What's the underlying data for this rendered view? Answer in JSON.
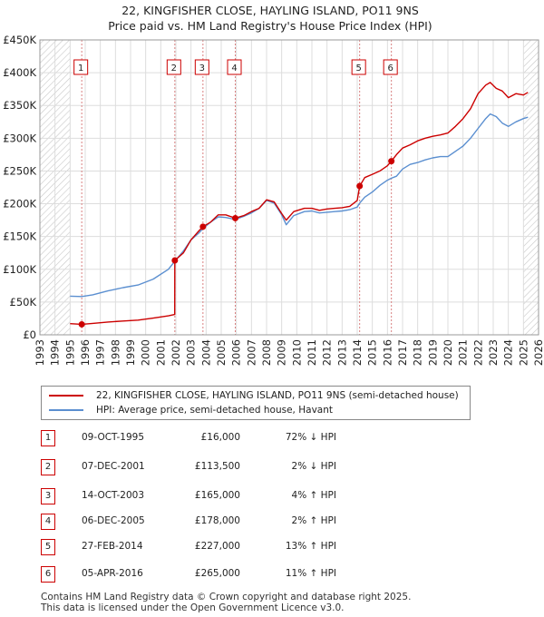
{
  "chart_data": {
    "type": "line",
    "title": "22, KINGFISHER CLOSE, HAYLING ISLAND, PO11 9NS",
    "subtitle": "Price paid vs. HM Land Registry's House Price Index (HPI)",
    "xlabel": "",
    "ylabel": "",
    "xlim": [
      1993,
      2026
    ],
    "ylim": [
      0,
      450000
    ],
    "x_ticks": [
      "1993",
      "1994",
      "1995",
      "1996",
      "1997",
      "1998",
      "1999",
      "2000",
      "2001",
      "2002",
      "2003",
      "2004",
      "2005",
      "2006",
      "2007",
      "2008",
      "2009",
      "2010",
      "2011",
      "2012",
      "2013",
      "2014",
      "2015",
      "2016",
      "2017",
      "2018",
      "2019",
      "2020",
      "2021",
      "2022",
      "2023",
      "2024",
      "2025",
      "2026"
    ],
    "y_ticks": [
      {
        "value": 0,
        "label": "£0"
      },
      {
        "value": 50000,
        "label": "£50K"
      },
      {
        "value": 100000,
        "label": "£100K"
      },
      {
        "value": 150000,
        "label": "£150K"
      },
      {
        "value": 200000,
        "label": "£200K"
      },
      {
        "value": 250000,
        "label": "£250K"
      },
      {
        "value": 300000,
        "label": "£300K"
      },
      {
        "value": 350000,
        "label": "£350K"
      },
      {
        "value": 400000,
        "label": "£400K"
      },
      {
        "value": 450000,
        "label": "£450K"
      }
    ],
    "grid": true,
    "hatched_regions": [
      [
        1993,
        1995.0
      ],
      [
        2025.0,
        2026
      ]
    ],
    "series": [
      {
        "name": "22, KINGFISHER CLOSE, HAYLING ISLAND, PO11 9NS (semi-detached house)",
        "color": "#cc0000",
        "x": [
          1995.0,
          1995.77,
          1996.5,
          1997.5,
          1998.5,
          1999.5,
          2000.5,
          2001.5,
          2001.92,
          2001.93,
          2002.5,
          2003.0,
          2003.5,
          2003.79,
          2004.3,
          2004.8,
          2005.3,
          2005.93,
          2006.5,
          2007.0,
          2007.5,
          2008.0,
          2008.5,
          2009.0,
          2009.3,
          2009.8,
          2010.5,
          2011.0,
          2011.5,
          2012.0,
          2012.5,
          2013.0,
          2013.5,
          2014.0,
          2014.16,
          2014.5,
          2015.0,
          2015.5,
          2016.0,
          2016.26,
          2016.6,
          2017.0,
          2017.5,
          2018.0,
          2018.5,
          2019.0,
          2019.5,
          2020.0,
          2020.5,
          2021.0,
          2021.5,
          2022.0,
          2022.5,
          2022.8,
          2023.2,
          2023.6,
          2024.0,
          2024.5,
          2025.0,
          2025.3
        ],
        "values": [
          17000,
          16000,
          17500,
          19500,
          21000,
          22500,
          25500,
          29000,
          31000,
          113500,
          125000,
          145000,
          158000,
          165000,
          172000,
          183000,
          183000,
          178000,
          182000,
          188000,
          193000,
          206000,
          203000,
          185000,
          175000,
          188000,
          193000,
          193000,
          190000,
          192000,
          193000,
          194000,
          196000,
          205000,
          227000,
          240000,
          245000,
          250000,
          258000,
          265000,
          275000,
          285000,
          290000,
          296000,
          300000,
          303000,
          305000,
          308000,
          318000,
          330000,
          345000,
          368000,
          381000,
          385000,
          376000,
          372000,
          362000,
          368000,
          366000,
          370000
        ]
      },
      {
        "name": "HPI: Average price, semi-detached house, Havant",
        "color": "#5b8fd0",
        "x": [
          1995.0,
          1995.77,
          1996.5,
          1997.5,
          1998.5,
          1999.5,
          2000.5,
          2001.5,
          2001.92,
          2002.5,
          2003.0,
          2003.5,
          2003.79,
          2004.3,
          2004.8,
          2005.3,
          2005.93,
          2006.5,
          2007.0,
          2007.5,
          2008.0,
          2008.5,
          2009.0,
          2009.3,
          2009.8,
          2010.5,
          2011.0,
          2011.5,
          2012.0,
          2012.5,
          2013.0,
          2013.5,
          2014.0,
          2014.16,
          2014.5,
          2015.0,
          2015.5,
          2016.0,
          2016.26,
          2016.6,
          2017.0,
          2017.5,
          2018.0,
          2018.5,
          2019.0,
          2019.5,
          2020.0,
          2020.5,
          2021.0,
          2021.5,
          2022.0,
          2022.5,
          2022.8,
          2023.2,
          2023.6,
          2024.0,
          2024.5,
          2025.0,
          2025.3
        ],
        "values": [
          59000,
          58500,
          61000,
          67000,
          72000,
          76000,
          85000,
          100000,
          112000,
          128000,
          145000,
          155000,
          162000,
          172000,
          180000,
          179000,
          176000,
          181000,
          186000,
          193000,
          205000,
          201000,
          183000,
          168000,
          182000,
          188000,
          189000,
          186000,
          187000,
          188000,
          189000,
          191000,
          195000,
          201000,
          210000,
          218000,
          228000,
          236000,
          239000,
          242000,
          253000,
          260000,
          263000,
          267000,
          270000,
          272000,
          272000,
          280000,
          288000,
          300000,
          315000,
          330000,
          337000,
          333000,
          323000,
          318000,
          325000,
          330000,
          332000
        ]
      }
    ],
    "sales": [
      {
        "num": "1",
        "year": 1995.77,
        "price": 16000,
        "date": "09-OCT-1995",
        "price_label": "£16,000",
        "hpi": "72% ↓ HPI"
      },
      {
        "num": "2",
        "year": 2001.93,
        "price": 113500,
        "date": "07-DEC-2001",
        "price_label": "£113,500",
        "hpi": "2% ↓ HPI"
      },
      {
        "num": "3",
        "year": 2003.79,
        "price": 165000,
        "date": "14-OCT-2003",
        "price_label": "£165,000",
        "hpi": "4% ↑ HPI"
      },
      {
        "num": "4",
        "year": 2005.93,
        "price": 178000,
        "date": "06-DEC-2005",
        "price_label": "£178,000",
        "hpi": "2% ↑ HPI"
      },
      {
        "num": "5",
        "year": 2014.16,
        "price": 227000,
        "date": "27-FEB-2014",
        "price_label": "£227,000",
        "hpi": "13% ↑ HPI"
      },
      {
        "num": "6",
        "year": 2016.26,
        "price": 265000,
        "date": "05-APR-2016",
        "price_label": "£265,000",
        "hpi": "11% ↑ HPI"
      }
    ]
  },
  "legend": {
    "property_label": "22, KINGFISHER CLOSE, HAYLING ISLAND, PO11 9NS (semi-detached house)",
    "hpi_label": "HPI: Average price, semi-detached house, Havant",
    "property_color": "#cc0000",
    "hpi_color": "#5b8fd0"
  },
  "footer": {
    "line1": "Contains HM Land Registry data © Crown copyright and database right 2025.",
    "line2": "This data is licensed under the Open Government Licence v3.0."
  }
}
